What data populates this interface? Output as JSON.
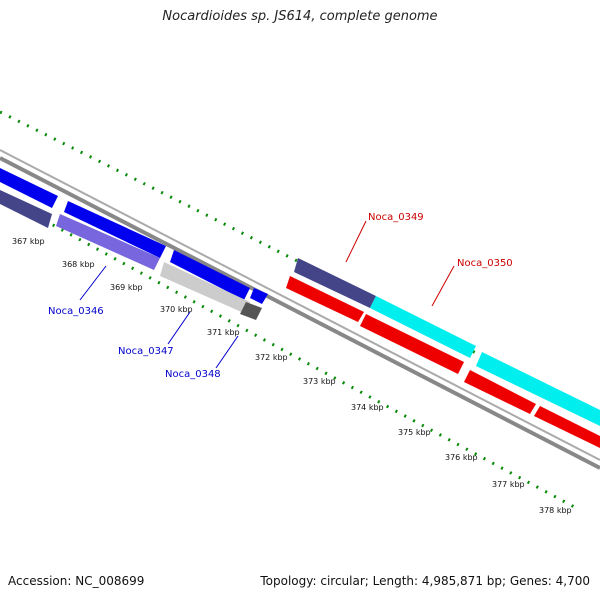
{
  "header": {
    "title": "Nocardioides sp. JS614, complete genome"
  },
  "footer": {
    "accession": "Accession: NC_008699",
    "summary": "Topology: circular; Length: 4,985,871 bp; Genes: 4,700"
  },
  "scale": {
    "unit": "kbp",
    "ticks": [
      "367 kbp",
      "368 kbp",
      "369 kbp",
      "370 kbp",
      "371 kbp",
      "372 kbp",
      "373 kbp",
      "374 kbp",
      "375 kbp",
      "376 kbp",
      "377 kbp",
      "378 kbp"
    ]
  },
  "genes": [
    {
      "name": "Noca_0346",
      "color": "#0000cc"
    },
    {
      "name": "Noca_0347",
      "color": "#0000cc"
    },
    {
      "name": "Noca_0348",
      "color": "#0000cc"
    },
    {
      "name": "Noca_0349",
      "color": "#cc0000"
    },
    {
      "name": "Noca_0350",
      "color": "#cc0000"
    }
  ],
  "colors": {
    "forward_cds": "#0000ff",
    "forward_cds_light": "#7766dd",
    "forward_cds_dark": "#444488",
    "reverse_cds": "#ff0000",
    "reverse_cds_alt": "#00ffff",
    "rna_gray": "#cccccc",
    "backbone": "#888888",
    "tick_green": "#008000"
  }
}
